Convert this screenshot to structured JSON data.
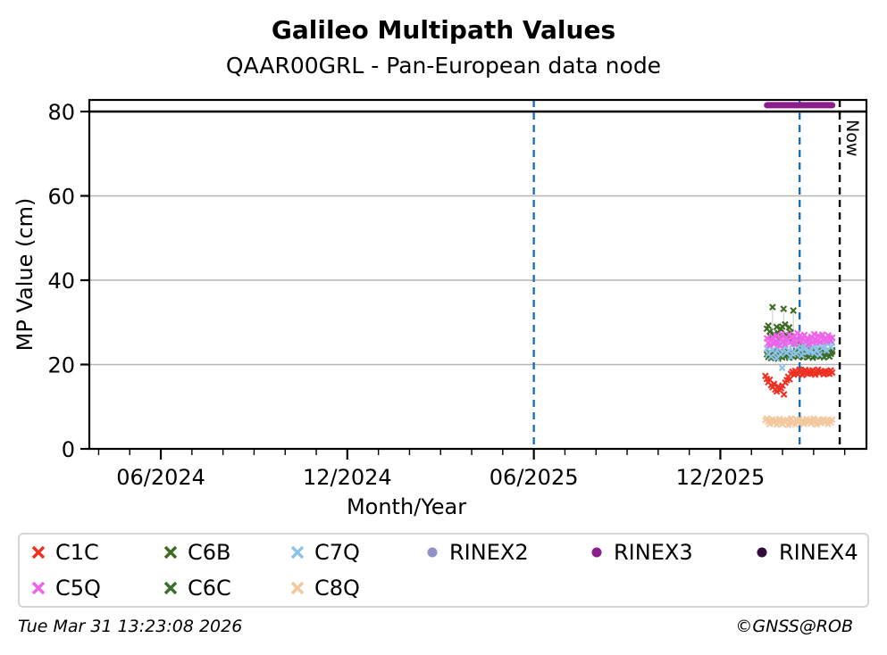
{
  "title": "Galileo Multipath Values",
  "subtitle": "QAAR00GRL - Pan-European data node",
  "footer": {
    "timestamp": "Tue Mar 31 13:23:08 2026",
    "credit": "©GNSS@ROB"
  },
  "chart_data": {
    "type": "scatter",
    "title": "Galileo Multipath Values",
    "subtitle": "QAAR00GRL - Pan-European data node",
    "xlabel": "Month/Year",
    "ylabel": "MP Value (cm)",
    "ylim": [
      0,
      82.75
    ],
    "yticks": [
      0,
      20,
      40,
      60,
      80
    ],
    "ygrid": {
      "values": [
        20,
        40,
        60
      ],
      "color": "#b3b3b3"
    },
    "hline": {
      "y": 80,
      "color": "#000000"
    },
    "x_domain_months_since_2024_01": [
      2.7,
      27.7
    ],
    "xticks": [
      {
        "label": "06/2024",
        "month": 5
      },
      {
        "label": "12/2024",
        "month": 11
      },
      {
        "label": "06/2025",
        "month": 17
      },
      {
        "label": "12/2025",
        "month": 23
      }
    ],
    "x_minor_ticks_months": [
      3,
      4,
      5,
      6,
      7,
      8,
      9,
      10,
      11,
      12,
      13,
      14,
      15,
      16,
      17,
      18,
      19,
      20,
      21,
      22,
      23,
      24,
      25,
      26,
      27
    ],
    "vlines": [
      {
        "name": "vline-jun-2025",
        "month": 17.0,
        "color": "#1b6fbc",
        "style": "dashed",
        "label": ""
      },
      {
        "name": "vline-latest",
        "month": 25.55,
        "color": "#1b6fbc",
        "style": "dashed",
        "label": ""
      },
      {
        "name": "vline-now",
        "month": 26.84,
        "color": "#000000",
        "style": "dashed",
        "label": "Now"
      }
    ],
    "spike_connectors": {
      "color": "#d9d9d9",
      "segments": [
        {
          "month": 24.68,
          "y_top": 33.6,
          "y_bottom": 25.5
        },
        {
          "month": 25.04,
          "y_top": 33.2,
          "y_bottom": 26.0
        },
        {
          "month": 25.35,
          "y_top": 32.8,
          "y_bottom": 25.2
        }
      ]
    },
    "series": [
      {
        "name": "C6B",
        "marker": "x",
        "color": "#3d6b23",
        "x_start_month": 24.5,
        "x_end_month": 26.6,
        "values": [
          28.5,
          29.2,
          27.8,
          26.5,
          33.6,
          27.2,
          26.8,
          28.9,
          27.5,
          26.2,
          28.4,
          29.0,
          33.2,
          29.5,
          27.0,
          26.4,
          28.8,
          27.6,
          25.9,
          32.8,
          25.2,
          24.8,
          25.5,
          24.2,
          23.8,
          24.5,
          23.4,
          24.0,
          23.2,
          23.8,
          23.0,
          23.5,
          22.8,
          23.3,
          22.6,
          23.1,
          22.9,
          23.4,
          22.7,
          23.2,
          22.5,
          23.0,
          22.8,
          23.3,
          22.6,
          23.1,
          22.9,
          23.4
        ]
      },
      {
        "name": "C6C",
        "marker": "x",
        "color": "#3b6e2d",
        "x_start_month": 24.5,
        "x_end_month": 26.6,
        "values": [
          22.4,
          21.8,
          22.9,
          21.5,
          22.2,
          23.1,
          21.9,
          22.6,
          21.4,
          22.8,
          23.2,
          21.7,
          22.3,
          21.9,
          22.7,
          23.0,
          21.6,
          22.4,
          22.9,
          21.8,
          22.5,
          23.3,
          21.9,
          22.2,
          23.0,
          22.6,
          21.7,
          22.8,
          22.1,
          23.2,
          21.8,
          22.5,
          22.9,
          21.6,
          22.3,
          23.1,
          22.0,
          22.7,
          21.9,
          22.4,
          23.0,
          21.7,
          22.6,
          22.2,
          22.8,
          21.9,
          22.5,
          23.1
        ]
      },
      {
        "name": "C7Q",
        "marker": "x",
        "color": "#8ec2e8",
        "x_start_month": 24.5,
        "x_end_month": 26.6,
        "values": [
          23.8,
          22.5,
          24.2,
          21.9,
          23.4,
          24.8,
          22.7,
          21.5,
          23.9,
          25.2,
          22.4,
          19.2,
          23.6,
          24.4,
          22.8,
          25.6,
          23.2,
          21.8,
          24.6,
          23.0,
          25.4,
          22.6,
          24.0,
          25.8,
          23.5,
          22.2,
          24.8,
          23.8,
          25.2,
          22.9,
          24.4,
          23.1,
          25.6,
          24.2,
          22.7,
          25.0,
          23.6,
          24.8,
          22.4,
          25.4,
          23.9,
          24.5,
          25.8,
          23.3,
          24.9,
          25.5,
          24.1,
          25.2
        ]
      },
      {
        "name": "C5Q",
        "marker": "x",
        "color": "#ef62e9",
        "x_start_month": 24.5,
        "x_end_month": 26.6,
        "values": [
          26.2,
          25.1,
          24.6,
          25.8,
          26.5,
          24.9,
          25.4,
          26.8,
          25.2,
          24.5,
          26.1,
          27.2,
          25.6,
          24.8,
          26.4,
          25.9,
          27.1,
          25.3,
          26.7,
          25.8,
          24.9,
          26.2,
          27.4,
          25.7,
          26.9,
          25.4,
          26.1,
          27.0,
          25.5,
          26.3,
          24.8,
          25.9,
          26.6,
          25.2,
          27.2,
          26.0,
          25.6,
          26.8,
          25.3,
          26.5,
          27.1,
          25.8,
          26.2,
          25.5,
          26.9,
          26.3,
          25.7,
          26.4
        ]
      },
      {
        "name": "C1C",
        "marker": "x",
        "color": "#ee3123",
        "x_start_month": 24.45,
        "x_end_month": 26.6,
        "values": [
          17.3,
          16.6,
          15.8,
          16.4,
          15.1,
          14.6,
          15.4,
          14.1,
          13.6,
          14.8,
          13.9,
          14.4,
          15.0,
          12.9,
          15.7,
          16.3,
          17.1,
          16.5,
          17.8,
          18.3,
          17.6,
          18.5,
          18.0,
          17.7,
          18.8,
          18.4,
          17.5,
          18.1,
          18.7,
          18.2,
          17.8,
          18.5,
          17.9,
          18.6,
          18.1,
          17.6,
          18.3,
          18.8,
          18.0,
          18.5,
          18.2,
          17.7,
          18.4,
          17.9,
          18.3,
          17.8,
          18.6,
          18.1
        ]
      },
      {
        "name": "C8Q",
        "marker": "x",
        "color": "#f4c89e",
        "x_start_month": 24.45,
        "x_end_month": 26.6,
        "values": [
          6.8,
          7.2,
          6.4,
          5.9,
          6.6,
          7.0,
          6.2,
          6.8,
          5.8,
          6.4,
          7.1,
          6.5,
          5.9,
          6.7,
          6.3,
          6.9,
          5.7,
          6.5,
          7.2,
          6.1,
          6.6,
          5.8,
          6.9,
          6.4,
          7.0,
          6.2,
          6.7,
          5.9,
          6.5,
          7.1,
          6.3,
          6.8,
          6.0,
          6.6,
          7.2,
          6.4,
          5.8,
          6.9,
          6.5,
          6.1,
          6.7,
          7.0,
          6.3,
          6.8,
          5.9,
          6.6,
          6.2,
          6.9
        ]
      },
      {
        "name": "RINEX3",
        "marker": "bar",
        "color": "#8c1d8c",
        "x_start_month": 24.5,
        "x_end_month": 26.6,
        "constant_value": 81.5
      }
    ],
    "legend": {
      "entries": [
        {
          "label": "C1C",
          "marker": "x",
          "color": "#ee3123"
        },
        {
          "label": "C6B",
          "marker": "x",
          "color": "#3d6b23"
        },
        {
          "label": "C7Q",
          "marker": "x",
          "color": "#8ec2e8"
        },
        {
          "label": "RINEX2",
          "marker": "circle",
          "color": "#8f90c7"
        },
        {
          "label": "RINEX3",
          "marker": "circle",
          "color": "#8c1d8c"
        },
        {
          "label": "RINEX4",
          "marker": "circle",
          "color": "#310c3c"
        },
        {
          "label": "C5Q",
          "marker": "x",
          "color": "#ef62e9"
        },
        {
          "label": "C6C",
          "marker": "x",
          "color": "#3b6e2d"
        },
        {
          "label": "C8Q",
          "marker": "x",
          "color": "#f4c89e"
        }
      ],
      "position": "bottom"
    }
  }
}
